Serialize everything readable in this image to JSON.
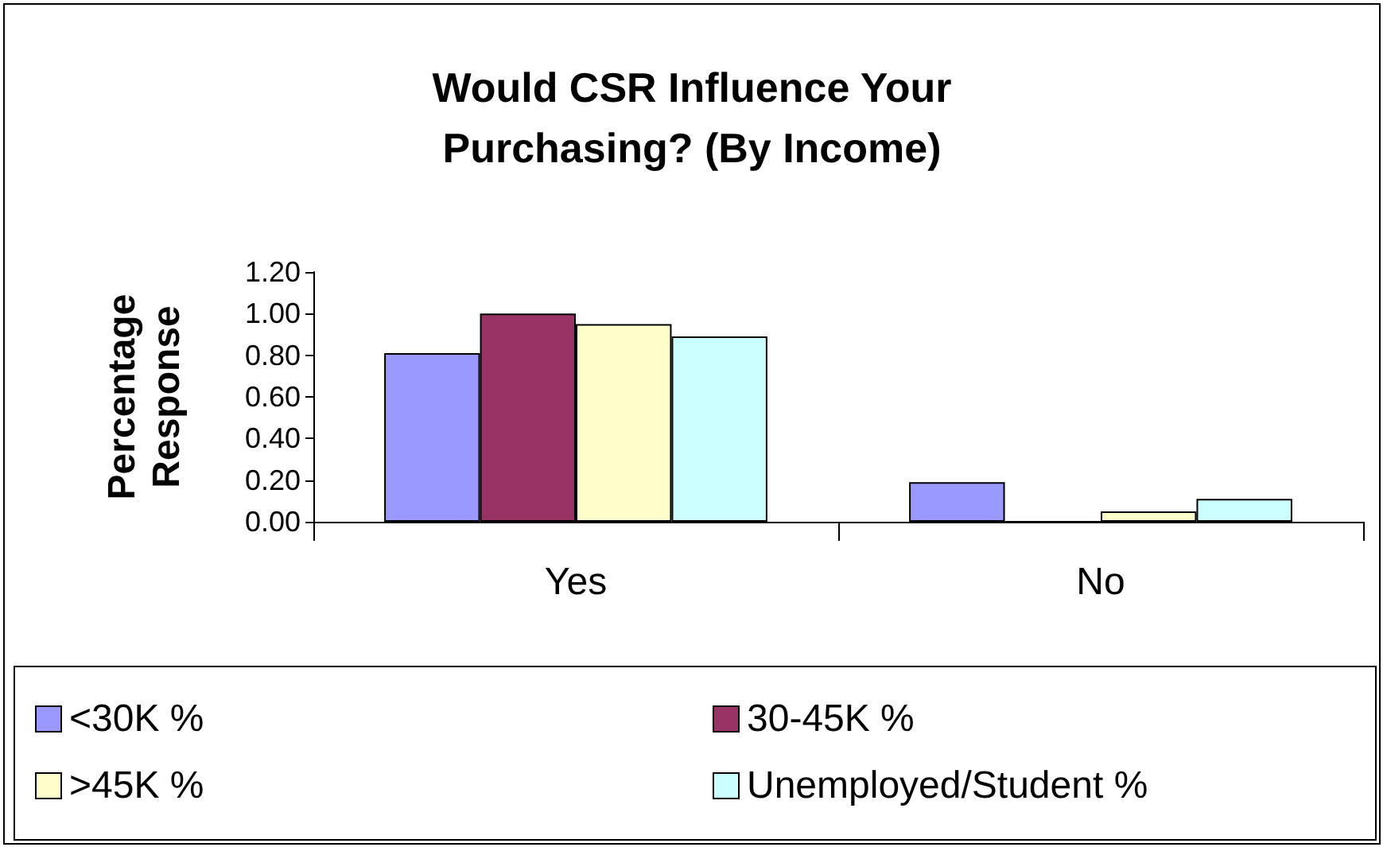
{
  "chart_data": {
    "type": "bar",
    "title": "Would CSR Influence Your\nPurchasing? (By Income)",
    "ylabel": "Percentage\nResponse",
    "categories": [
      "Yes",
      "No"
    ],
    "series": [
      {
        "name": "<30K %",
        "color": "#9999ff",
        "values": [
          0.81,
          0.19
        ]
      },
      {
        "name": "30-45K %",
        "color": "#993366",
        "values": [
          1.0,
          0
        ]
      },
      {
        "name": ">45K %",
        "color": "#ffffcc",
        "values": [
          0.95,
          0.05
        ]
      },
      {
        "name": "Unemployed/Student %",
        "color": "#ccffff",
        "values": [
          0.89,
          0.11
        ]
      }
    ],
    "ylim": [
      0,
      1.2
    ],
    "yticks": [
      {
        "value": 0,
        "label": "0.00"
      },
      {
        "value": 0.2,
        "label": "0.20"
      },
      {
        "value": 0.4,
        "label": "0.40"
      },
      {
        "value": 0.6,
        "label": "0.60"
      },
      {
        "value": 0.8,
        "label": "0.80"
      },
      {
        "value": 1.0,
        "label": "1.00"
      },
      {
        "value": 1.2,
        "label": "1.20"
      }
    ],
    "grid": false,
    "legend": "bottom"
  }
}
